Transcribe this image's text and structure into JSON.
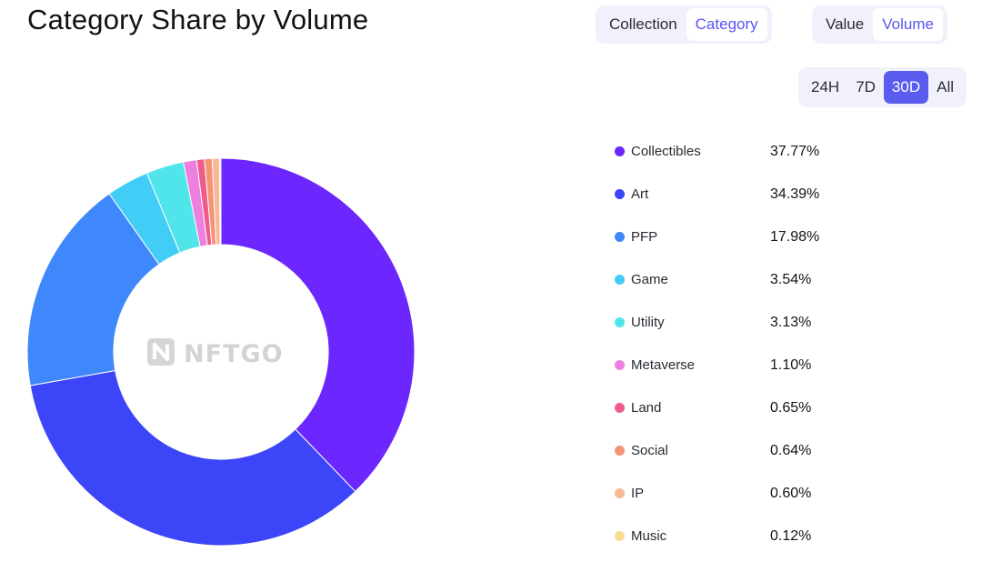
{
  "header": {
    "title": "Category Share by Volume"
  },
  "toggles": {
    "mode": {
      "options": [
        "Collection",
        "Category"
      ],
      "selected": "Category"
    },
    "metric": {
      "options": [
        "Value",
        "Volume"
      ],
      "selected": "Volume"
    },
    "range": {
      "options": [
        "24H",
        "7D",
        "30D",
        "All"
      ],
      "selected": "30D"
    }
  },
  "watermark": {
    "text": "NFTGO"
  },
  "colors": {
    "accent": "#5a5cf0"
  },
  "chart_data": {
    "type": "pie",
    "title": "Category Share by Volume",
    "unit": "%",
    "legend_position": "right",
    "series": [
      {
        "name": "Collectibles",
        "value": 37.77,
        "label": "37.77%",
        "color": "#6c26fe"
      },
      {
        "name": "Art",
        "value": 34.39,
        "label": "34.39%",
        "color": "#3c45f8"
      },
      {
        "name": "PFP",
        "value": 17.98,
        "label": "17.98%",
        "color": "#3f88fb"
      },
      {
        "name": "Game",
        "value": 3.54,
        "label": "3.54%",
        "color": "#41cdf6"
      },
      {
        "name": "Utility",
        "value": 3.13,
        "label": "3.13%",
        "color": "#50e5ea"
      },
      {
        "name": "Metaverse",
        "value": 1.1,
        "label": "1.10%",
        "color": "#ec7fdf"
      },
      {
        "name": "Land",
        "value": 0.65,
        "label": "0.65%",
        "color": "#ef5c8a"
      },
      {
        "name": "Social",
        "value": 0.64,
        "label": "0.64%",
        "color": "#f49376"
      },
      {
        "name": "IP",
        "value": 0.6,
        "label": "0.60%",
        "color": "#f7b893"
      },
      {
        "name": "Music",
        "value": 0.12,
        "label": "0.12%",
        "color": "#f8dd90"
      }
    ]
  }
}
